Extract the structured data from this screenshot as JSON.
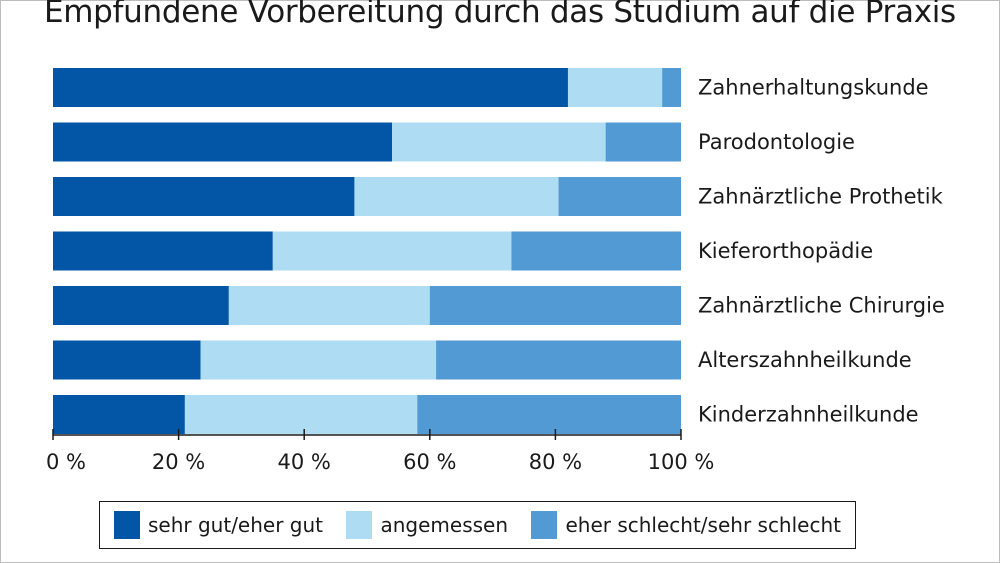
{
  "title": "Empfundene Vorbereitung durch das Studium auf die Praxis",
  "colors": {
    "sehr_gut": "#0355a6",
    "angemessen": "#aedcf3",
    "schlecht": "#529ad3",
    "axis": "#1a1a1a"
  },
  "chart_data": {
    "type": "bar",
    "orientation": "horizontal",
    "stacked": true,
    "categories": [
      "Zahnerhaltungskunde",
      "Parodontologie",
      "Zahnärztliche Prothetik",
      "Kieferorthopädie",
      "Zahnärztliche Chirurgie",
      "Alterszahnheilkunde",
      "Kinderzahnheilkunde"
    ],
    "series": [
      {
        "name": "sehr gut/eher gut",
        "color": "#0355a6",
        "values": [
          82,
          54,
          48,
          35,
          28,
          23.5,
          21
        ]
      },
      {
        "name": "angemessen",
        "color": "#aedcf3",
        "values": [
          15,
          34,
          32.5,
          38,
          32,
          37.5,
          37
        ]
      },
      {
        "name": "eher schlecht/sehr schlecht",
        "color": "#529ad3",
        "values": [
          3,
          12,
          19.5,
          27,
          40,
          39,
          42
        ]
      }
    ],
    "x_ticks": [
      "0 %",
      "20 %",
      "40 %",
      "60 %",
      "80 %",
      "100 %"
    ],
    "xlim": [
      0,
      100
    ],
    "grid": false,
    "legend_position": "bottom"
  },
  "legend": [
    {
      "label": "sehr gut/eher gut",
      "color": "#0355a6"
    },
    {
      "label": "angemessen",
      "color": "#aedcf3"
    },
    {
      "label": "eher schlecht/sehr schlecht",
      "color": "#529ad3"
    }
  ]
}
